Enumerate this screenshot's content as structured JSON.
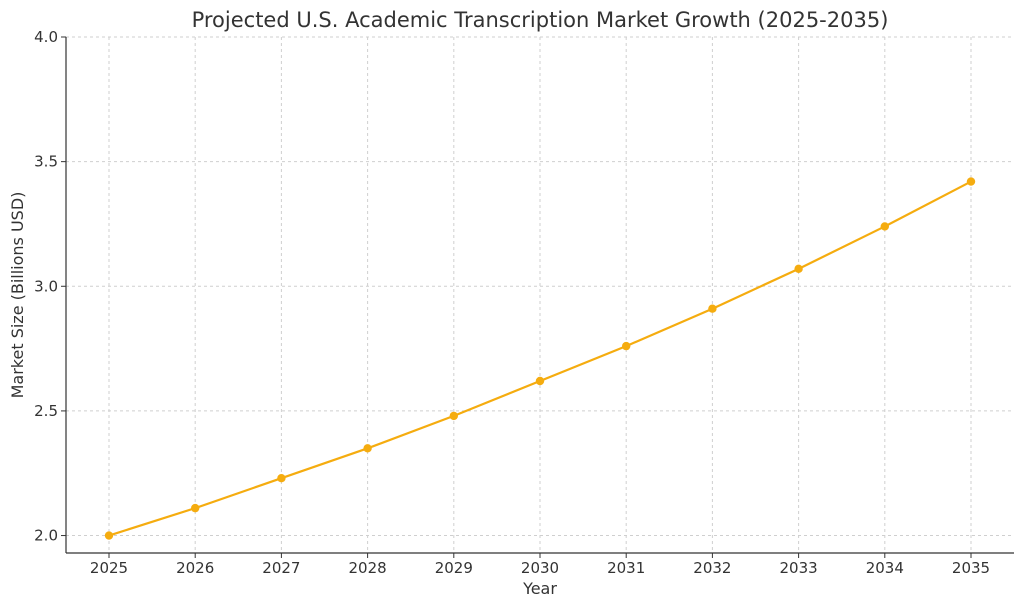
{
  "chart_data": {
    "type": "line",
    "title": "Projected U.S. Academic Transcription Market Growth (2025-2035)",
    "xlabel": "Year",
    "ylabel": "Market Size (Billions USD)",
    "x": [
      "2025",
      "2026",
      "2027",
      "2028",
      "2029",
      "2030",
      "2031",
      "2032",
      "2033",
      "2034",
      "2035"
    ],
    "series": [
      {
        "values": [
          2.0,
          2.11,
          2.23,
          2.35,
          2.48,
          2.62,
          2.76,
          2.91,
          3.07,
          3.24,
          3.42
        ],
        "color": "#f5ac0f"
      }
    ],
    "ylim": [
      1.93,
      4.0
    ],
    "yticks": [
      "2.0",
      "2.5",
      "3.0",
      "3.5",
      "4.0"
    ],
    "ytick_values": [
      2.0,
      2.5,
      3.0,
      3.5,
      4.0
    ],
    "grid": true,
    "marker": "circle"
  }
}
